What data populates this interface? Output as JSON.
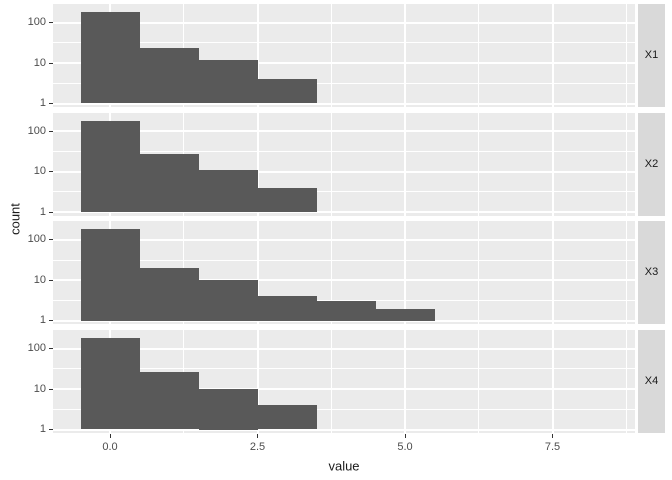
{
  "chart_data": {
    "type": "bar",
    "subtype": "faceted-histogram",
    "title": "",
    "xlabel": "value",
    "ylabel": "count",
    "x_ticks": [
      0.0,
      2.5,
      5.0,
      7.5
    ],
    "x_tick_labels": [
      "0.0",
      "2.5",
      "5.0",
      "7.5"
    ],
    "x_minor_ticks": [
      1.25,
      3.75,
      6.25,
      8.75
    ],
    "xlim": [
      -0.95,
      8.95
    ],
    "y_scale": "log10",
    "y_ticks": [
      100,
      10,
      1
    ],
    "y_tick_labels": [
      "100",
      "10",
      "1"
    ],
    "y_minor_log10": [
      0.5,
      1.5
    ],
    "ylim_log10": [
      -0.1,
      2.46
    ],
    "binwidth": 1,
    "grid": "on",
    "legend": "none",
    "facets": [
      {
        "label": "X1",
        "bin_centers": [
          0,
          1,
          2,
          3
        ],
        "counts": [
          185,
          24,
          12,
          4
        ]
      },
      {
        "label": "X2",
        "bin_centers": [
          0,
          1,
          2,
          3
        ],
        "counts": [
          180,
          27,
          11,
          4
        ]
      },
      {
        "label": "X3",
        "bin_centers": [
          0,
          1,
          2,
          3,
          4,
          5
        ],
        "counts": [
          185,
          20,
          10,
          4,
          3,
          2
        ]
      },
      {
        "label": "X4",
        "bin_centers": [
          0,
          1,
          2,
          3
        ],
        "counts": [
          185,
          27,
          10,
          4
        ]
      }
    ],
    "colors": {
      "bar": "#595959",
      "panel_bg": "#EBEBEB",
      "strip_bg": "#D9D9D9",
      "grid": "#FFFFFF",
      "tick_label": "#4D4D4D",
      "axis_title": "#1A1A1A",
      "strip_text": "#1A1A1A",
      "tick_mark": "#333333",
      "background": "#FFFFFF"
    }
  }
}
